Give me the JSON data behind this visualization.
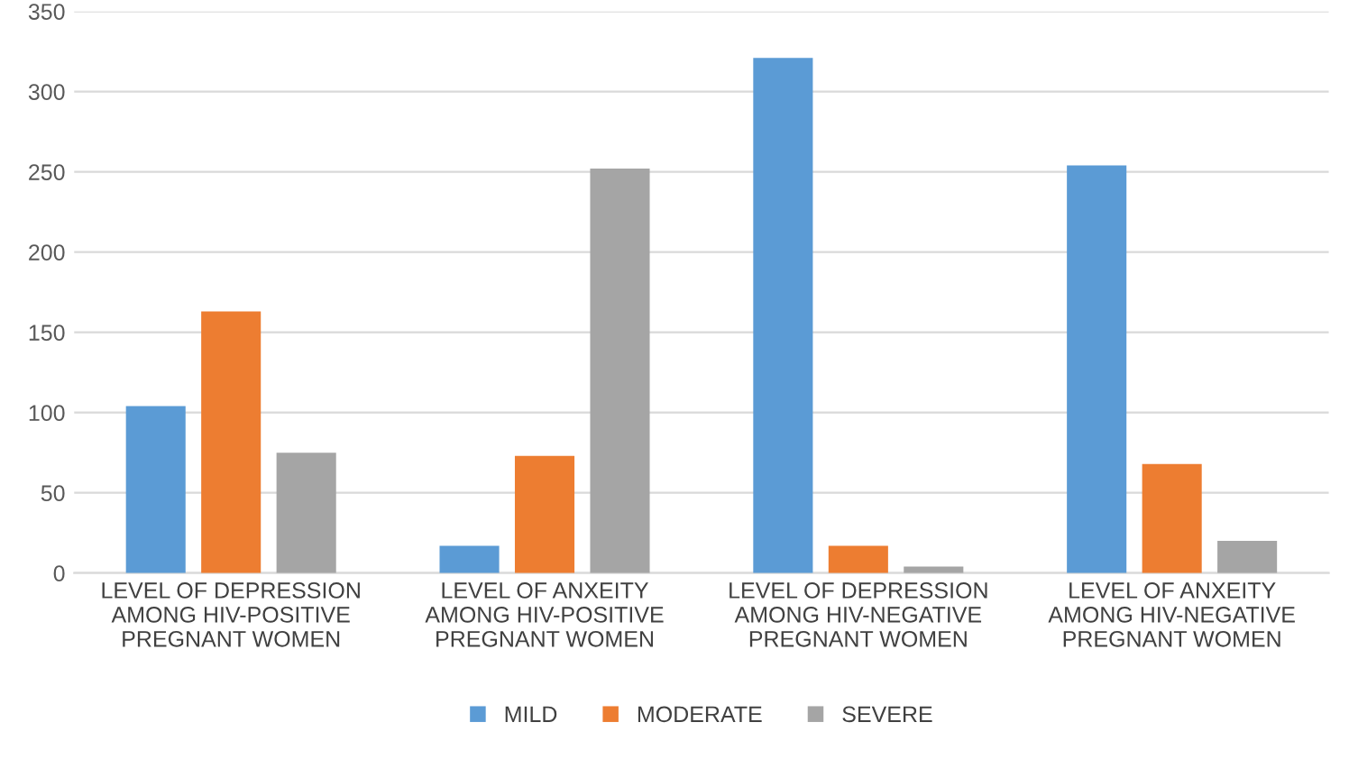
{
  "chart_data": {
    "type": "bar",
    "categories": [
      "LEVEL OF DEPRESSION\nAMONG HIV-POSITIVE\nPREGNANT WOMEN",
      "LEVEL OF ANXEITY\nAMONG HIV-POSITIVE\nPREGNANT WOMEN",
      "LEVEL OF DEPRESSION\nAMONG HIV-NEGATIVE\nPREGNANT WOMEN",
      "LEVEL OF ANXEITY\nAMONG HIV-NEGATIVE\nPREGNANT WOMEN"
    ],
    "series": [
      {
        "name": "MILD",
        "color": "#5b9bd5",
        "values": [
          104,
          17,
          321,
          254
        ]
      },
      {
        "name": "MODERATE",
        "color": "#ed7d31",
        "values": [
          163,
          73,
          17,
          68
        ]
      },
      {
        "name": "SEVERE",
        "color": "#a5a5a5",
        "values": [
          75,
          252,
          4,
          20
        ]
      }
    ],
    "ylim": [
      0,
      350
    ],
    "yticks": [
      0,
      50,
      100,
      150,
      200,
      250,
      300,
      350
    ],
    "grid": "y",
    "legend": "bottom"
  }
}
